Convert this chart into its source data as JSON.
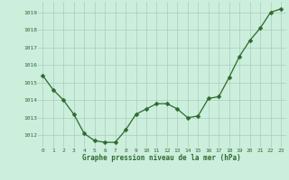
{
  "x": [
    0,
    1,
    2,
    3,
    4,
    5,
    6,
    7,
    8,
    9,
    10,
    11,
    12,
    13,
    14,
    15,
    16,
    17,
    18,
    19,
    20,
    21,
    22,
    23
  ],
  "y": [
    1015.4,
    1014.6,
    1014.0,
    1013.2,
    1012.1,
    1011.7,
    1011.6,
    1011.6,
    1012.3,
    1013.2,
    1013.5,
    1013.8,
    1013.8,
    1013.5,
    1013.0,
    1013.1,
    1014.1,
    1014.2,
    1015.3,
    1016.5,
    1017.4,
    1018.1,
    1019.0,
    1019.2
  ],
  "line_color": "#2d6a2d",
  "marker_color": "#2d6a2d",
  "bg_color": "#cceedd",
  "grid_color": "#aaccbb",
  "xlabel": "Graphe pression niveau de la mer (hPa)",
  "xlabel_color": "#2d6a2d",
  "ytick_labels": [
    1012,
    1013,
    1014,
    1015,
    1016,
    1017,
    1018,
    1019
  ],
  "ylim": [
    1011.3,
    1019.6
  ],
  "xlim": [
    -0.5,
    23.5
  ],
  "xtick_labels": [
    "0",
    "1",
    "2",
    "3",
    "4",
    "5",
    "6",
    "7",
    "8",
    "9",
    "10",
    "11",
    "12",
    "13",
    "14",
    "15",
    "16",
    "17",
    "18",
    "19",
    "20",
    "21",
    "22",
    "23"
  ]
}
